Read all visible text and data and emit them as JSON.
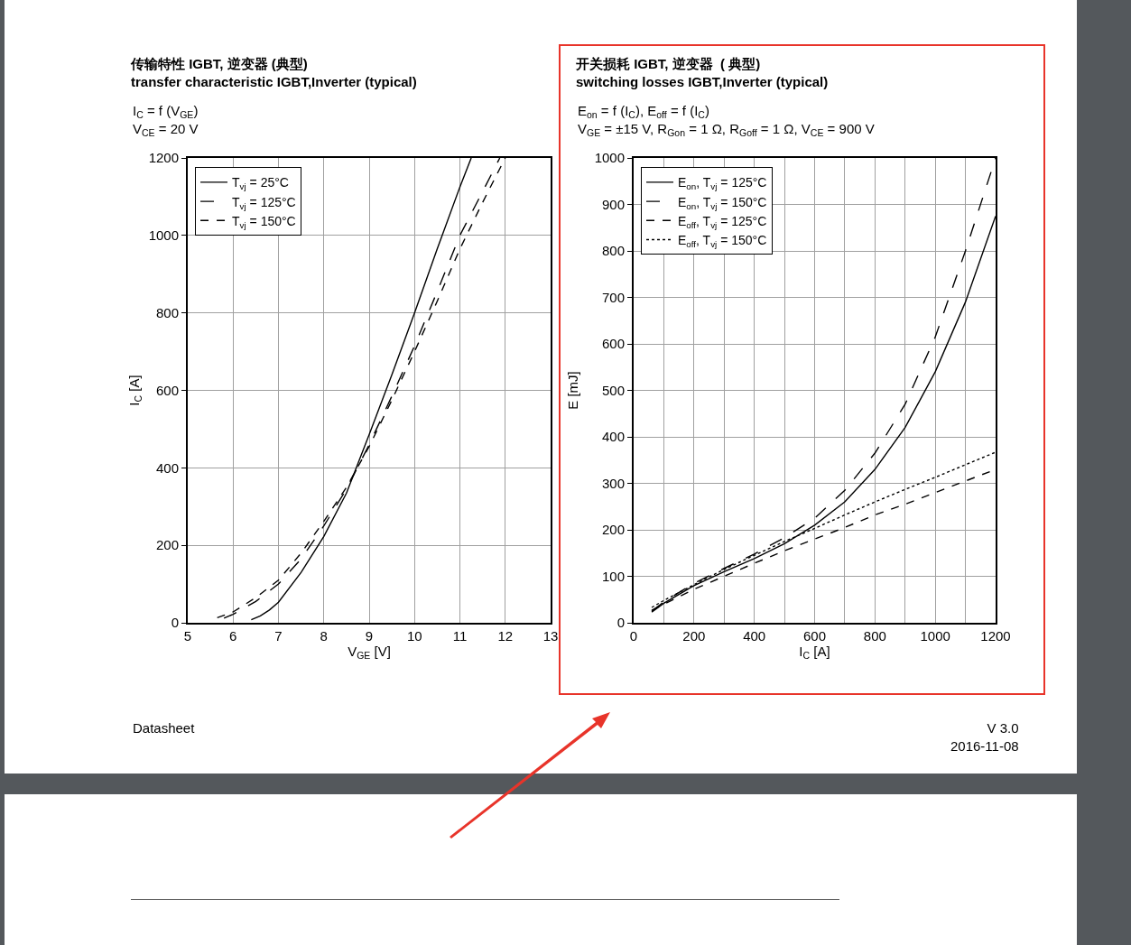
{
  "chart_data": [
    {
      "type": "line",
      "title": "传输特性 IGBT, 逆变器 (典型)\ntransfer characteristic IGBT,Inverter (typical)",
      "subtitle": "I$_{C}$ = f (V$_{GE}$)\nV$_{CE}$ = 20 V",
      "xlabel": "V$_{GE}$ [V]",
      "ylabel": "I$_{C}$ [A]",
      "xlim": [
        5,
        13
      ],
      "xticks": [
        5,
        6,
        7,
        8,
        9,
        10,
        11,
        12,
        13
      ],
      "ylim": [
        0,
        1200
      ],
      "yticks": [
        0,
        200,
        400,
        600,
        800,
        1000,
        1200
      ],
      "grid": true,
      "legend": "top left",
      "marker": "none",
      "annotations": [
        "Datasheet"
      ],
      "series": [
        {
          "name": "T$_{vj}$ = 25°C",
          "color": "#000000",
          "line_style": "solid",
          "x": [
            6.4,
            6.6,
            6.8,
            7,
            7.5,
            8,
            8.5,
            9,
            9.5,
            10,
            10.5,
            11,
            11.25
          ],
          "values": [
            8,
            18,
            33,
            53,
            130,
            223,
            335,
            486,
            640,
            800,
            965,
            1125,
            1200
          ]
        },
        {
          "name": "T$_{vj}$ = 125°C",
          "color": "#000000",
          "line_style": "dashed",
          "x": [
            5.8,
            6,
            6.5,
            7,
            7.5,
            8,
            8.5,
            9,
            9.5,
            10,
            10.5,
            11,
            11.5,
            11.88
          ],
          "values": [
            12,
            22,
            55,
            100,
            165,
            250,
            345,
            460,
            585,
            715,
            855,
            1000,
            1113,
            1200
          ]
        },
        {
          "name": "T$_{vj}$ = 150°C",
          "color": "#000000",
          "line_style": "dashed",
          "x": [
            5.65,
            6,
            6.5,
            7,
            7.5,
            8,
            8.5,
            9,
            9.5,
            10,
            10.5,
            11,
            11.5,
            12
          ],
          "values": [
            13,
            28,
            65,
            110,
            180,
            262,
            350,
            455,
            575,
            700,
            830,
            965,
            1085,
            1200
          ]
        }
      ]
    },
    {
      "type": "line",
      "title": "开关损耗 IGBT, 逆变器  ( 典型)\nswitching losses IGBT,Inverter (typical)",
      "subtitle": "E$_{on}$ = f (I$_{C}$), E$_{off}$ = f (I$_{C}$)\nV$_{GE}$ = ±15 V, R$_{Gon}$ = 1 Ω, R$_{Goff}$ = 1 Ω, V$_{CE}$ = 900 V",
      "xlabel": "I$_{C}$ [A]",
      "ylabel": "E [mJ]",
      "xlim": [
        0,
        1200
      ],
      "xticks": [
        0,
        {
          "value": 100,
          "label": null
        },
        200,
        {
          "value": 300,
          "label": null
        },
        400,
        {
          "value": 500,
          "label": null
        },
        600,
        {
          "value": 700,
          "label": null
        },
        800,
        {
          "value": 900,
          "label": null
        },
        1000,
        {
          "value": 1100,
          "label": null
        },
        1200
      ],
      "ylim": [
        0,
        1000
      ],
      "yticks": [
        0,
        100,
        200,
        300,
        400,
        500,
        600,
        700,
        800,
        900,
        1000
      ],
      "grid": true,
      "legend": "top left",
      "marker": "none",
      "annotations": [
        "V 3.0\n2016-11-08"
      ],
      "x": [
        60,
        100,
        200,
        300,
        400,
        500,
        600,
        700,
        800,
        900,
        1000,
        1100,
        1200
      ],
      "series": [
        {
          "name": "E$_{on}$, T$_{vj}$ = 125°C",
          "color": "#000000",
          "line_style": "solid",
          "values": [
            23,
            42,
            80,
            110,
            138,
            170,
            210,
            260,
            330,
            420,
            540,
            690,
            875
          ]
        },
        {
          "name": "E$_{on}$, T$_{vj}$ = 150°C",
          "color": "#000000",
          "line_style": "dashed",
          "values": [
            25,
            45,
            85,
            117,
            148,
            183,
            225,
            285,
            365,
            470,
            615,
            800,
            1000
          ]
        },
        {
          "name": "E$_{off}$, T$_{vj}$ = 125°C",
          "color": "#000000",
          "line_style": "dashed",
          "values": [
            27,
            40,
            72,
            100,
            128,
            155,
            180,
            205,
            232,
            255,
            280,
            305,
            330
          ]
        },
        {
          "name": "E$_{off}$, T$_{vj}$ = 150°C",
          "color": "#000000",
          "line_style": "dotted",
          "values": [
            33,
            48,
            82,
            115,
            145,
            175,
            203,
            232,
            260,
            287,
            313,
            340,
            367
          ]
        }
      ]
    }
  ]
}
